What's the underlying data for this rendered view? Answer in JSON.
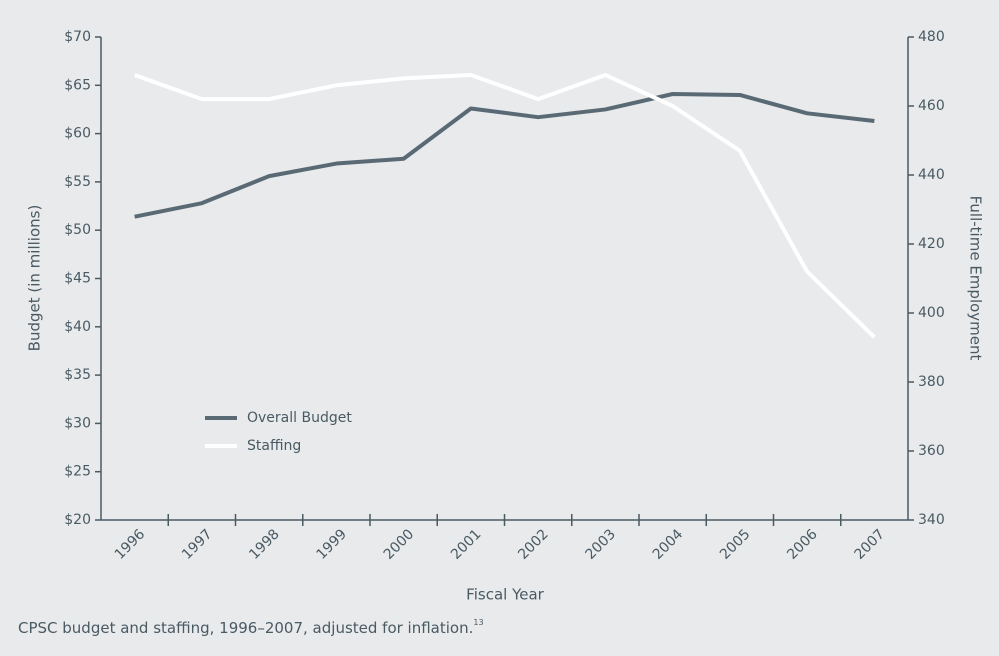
{
  "chart_data": {
    "type": "line",
    "x_label": "Fiscal Year",
    "y_label": "Budget (in millions)",
    "y2_label": "Full-time Employment",
    "caption": "CPSC budget and staffing, 1996–2007, adjusted for inflation.",
    "footnote": "13",
    "categories": [
      "1996",
      "1997",
      "1998",
      "1999",
      "2000",
      "2001",
      "2002",
      "2003",
      "2004",
      "2005",
      "2006",
      "2007"
    ],
    "series": [
      {
        "name": "Overall Budget",
        "color": "#5a6a74",
        "values": [
          51.4,
          52.8,
          55.6,
          56.9,
          57.4,
          62.6,
          61.7,
          62.5,
          64.1,
          64.0,
          62.1,
          61.3
        ]
      },
      {
        "name": "Staffing",
        "color": "#ffffff",
        "axis": "y2",
        "values": [
          469,
          462,
          462,
          466,
          468,
          469,
          462,
          469,
          460,
          447,
          412,
          393
        ]
      }
    ],
    "ylim": [
      20,
      70
    ],
    "yticks": [
      {
        "value": 20,
        "label": "$20"
      },
      {
        "value": 25,
        "label": "$25"
      },
      {
        "value": 30,
        "label": "$30"
      },
      {
        "value": 35,
        "label": "$35"
      },
      {
        "value": 40,
        "label": "$40"
      },
      {
        "value": 45,
        "label": "$45"
      },
      {
        "value": 50,
        "label": "$50"
      },
      {
        "value": 55,
        "label": "$55"
      },
      {
        "value": 60,
        "label": "$60"
      },
      {
        "value": 65,
        "label": "$65"
      },
      {
        "value": 70,
        "label": "$70"
      }
    ],
    "y2lim": [
      340,
      480
    ],
    "y2ticks": [
      340,
      360,
      380,
      400,
      420,
      440,
      460,
      480
    ],
    "grid": false,
    "legend": "lower-left"
  }
}
